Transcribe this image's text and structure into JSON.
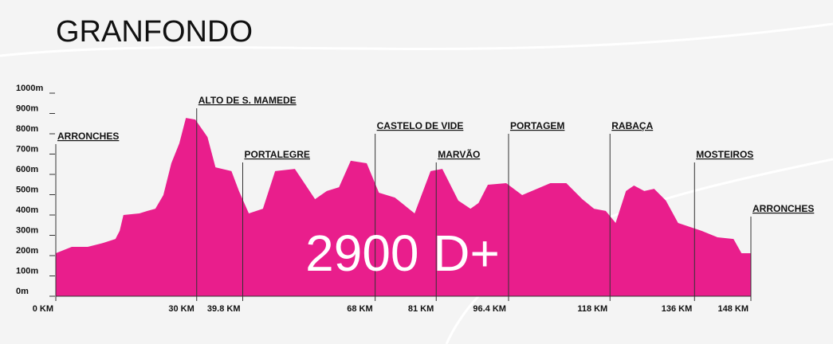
{
  "chart_data": {
    "type": "area",
    "title": "GRANFONDO",
    "total_label": "2900 D+",
    "color": "#e91e8c",
    "x": [
      0,
      3.4,
      6.8,
      10.2,
      12.7,
      13.6,
      14.4,
      17.8,
      19.5,
      21.2,
      22.9,
      24.6,
      26.3,
      27.7,
      29.7,
      32.3,
      34,
      37.4,
      39,
      41.1,
      44.1,
      46.7,
      50.9,
      55.2,
      57.7,
      60.3,
      62.8,
      66.2,
      68.8,
      72.2,
      76.4,
      79.8,
      82.3,
      85.7,
      88.3,
      90,
      92,
      95.9,
      99.3,
      105.3,
      108.7,
      112.1,
      114.6,
      117.1,
      119.2,
      121.4,
      123.1,
      125.3,
      127.4,
      129.9,
      132.5,
      137.5,
      140.9,
      144.3,
      146,
      148
    ],
    "values": [
      212,
      243,
      243,
      263,
      282,
      322,
      400,
      408,
      420,
      431,
      498,
      655,
      753,
      878,
      870,
      784,
      635,
      616,
      518,
      408,
      431,
      616,
      627,
      478,
      518,
      537,
      667,
      655,
      510,
      486,
      408,
      616,
      627,
      471,
      431,
      459,
      549,
      557,
      498,
      557,
      557,
      478,
      431,
      420,
      361,
      518,
      545,
      518,
      529,
      471,
      361,
      322,
      290,
      282,
      212,
      212
    ],
    "xlim": [
      0,
      148
    ],
    "ylim": [
      0,
      1000
    ],
    "yticks": [
      {
        "value": 0,
        "label": "0m"
      },
      {
        "value": 100,
        "label": "100m"
      },
      {
        "value": 200,
        "label": "200m"
      },
      {
        "value": 300,
        "label": "300m"
      },
      {
        "value": 400,
        "label": "400m"
      },
      {
        "value": 500,
        "label": "500m"
      },
      {
        "value": 600,
        "label": "600m"
      },
      {
        "value": 700,
        "label": "700m"
      },
      {
        "value": 800,
        "label": "800m"
      },
      {
        "value": 900,
        "label": "900m"
      },
      {
        "value": 1000,
        "label": "1000m"
      }
    ],
    "xticks": [
      {
        "value": 0,
        "label": "0 KM"
      },
      {
        "value": 30,
        "label": "30 KM"
      },
      {
        "value": 39.8,
        "label": "39.8 KM"
      },
      {
        "value": 68,
        "label": "68 KM"
      },
      {
        "value": 81,
        "label": "81 KM"
      },
      {
        "value": 96.4,
        "label": "96.4 KM"
      },
      {
        "value": 118,
        "label": "118 KM"
      },
      {
        "value": 136,
        "label": "136 KM"
      },
      {
        "value": 148,
        "label": "148 KM"
      }
    ],
    "annotations": [
      {
        "x": 0,
        "label": "ARRONCHES"
      },
      {
        "x": 30,
        "label": "ALTO DE S. MAMEDE"
      },
      {
        "x": 39.8,
        "label": "PORTALEGRE"
      },
      {
        "x": 68,
        "label": "CASTELO DE VIDE"
      },
      {
        "x": 81,
        "label": "MARVÃO"
      },
      {
        "x": 96.4,
        "label": "PORTAGEM"
      },
      {
        "x": 118,
        "label": "RABAÇA"
      },
      {
        "x": 136,
        "label": "MOSTEIROS"
      },
      {
        "x": 148,
        "label": "ARRONCHES"
      }
    ]
  }
}
